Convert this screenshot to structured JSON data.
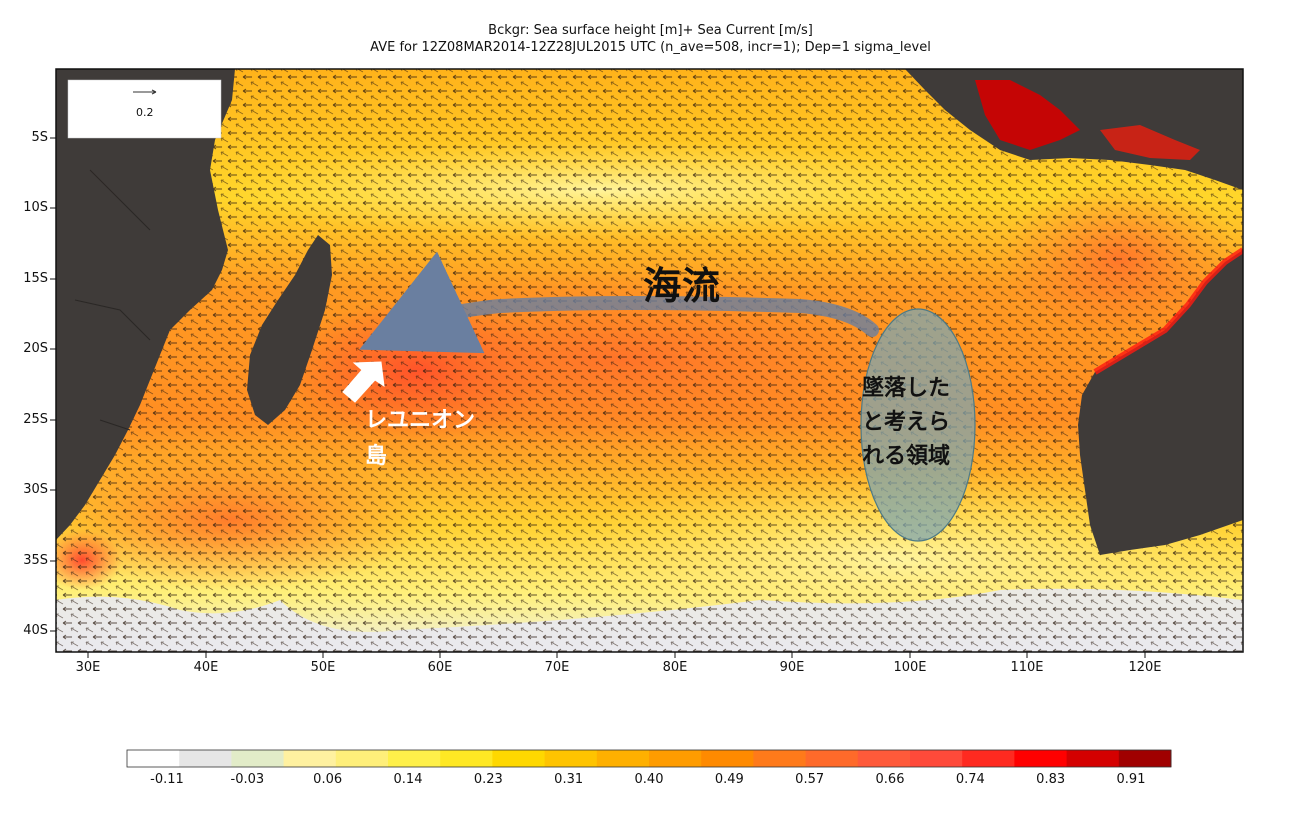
{
  "title": {
    "line1": "Bckgr: Sea surface height [m]+ Sea Current [m/s]",
    "line2": "AVE for 12Z08MAR2014-12Z28JUL2015 UTC (n_ave=508, incr=1); Dep=1 sigma_level"
  },
  "vector_legend": {
    "value": "0.2"
  },
  "annotations": {
    "current": "海流",
    "reunion_line1": "レユニオン",
    "reunion_line2": "島",
    "crash_area_lines": [
      "墜落した",
      "と考えら",
      "れる領域"
    ]
  },
  "axes": {
    "lat_labels": [
      "5S",
      "10S",
      "15S",
      "20S",
      "25S",
      "30S",
      "35S",
      "40S"
    ],
    "lon_labels": [
      "30E",
      "40E",
      "50E",
      "60E",
      "70E",
      "80E",
      "90E",
      "100E",
      "110E",
      "120E"
    ]
  },
  "colorbar": {
    "labels": [
      "-0.11",
      "-0.03",
      "0.06",
      "0.14",
      "0.23",
      "0.31",
      "0.40",
      "0.49",
      "0.57",
      "0.66",
      "0.74",
      "0.83",
      "0.91"
    ],
    "colors": [
      "#ffffff",
      "#e6e6e6",
      "#e2ecc8",
      "#fff1a0",
      "#ffef7a",
      "#fff04a",
      "#ffe824",
      "#ffd800",
      "#ffc400",
      "#ffb000",
      "#ff9c00",
      "#ff8a00",
      "#ff7a1a",
      "#ff6a2a",
      "#ff5a3a",
      "#ff4a3a",
      "#ff2a20",
      "#ff0000",
      "#d40000",
      "#a00000"
    ]
  },
  "colors": {
    "land": "#3f3b39",
    "ocean_warm": "#ff8c1a",
    "ocean_hot": "#ff4e2a",
    "ocean_mid": "#ffc62a",
    "ocean_cool": "#fff27a",
    "ocean_cold": "#e8e8ee",
    "annotation_arrow": "#6a7fa0",
    "crash_ellipse": "#7fa6b0"
  }
}
